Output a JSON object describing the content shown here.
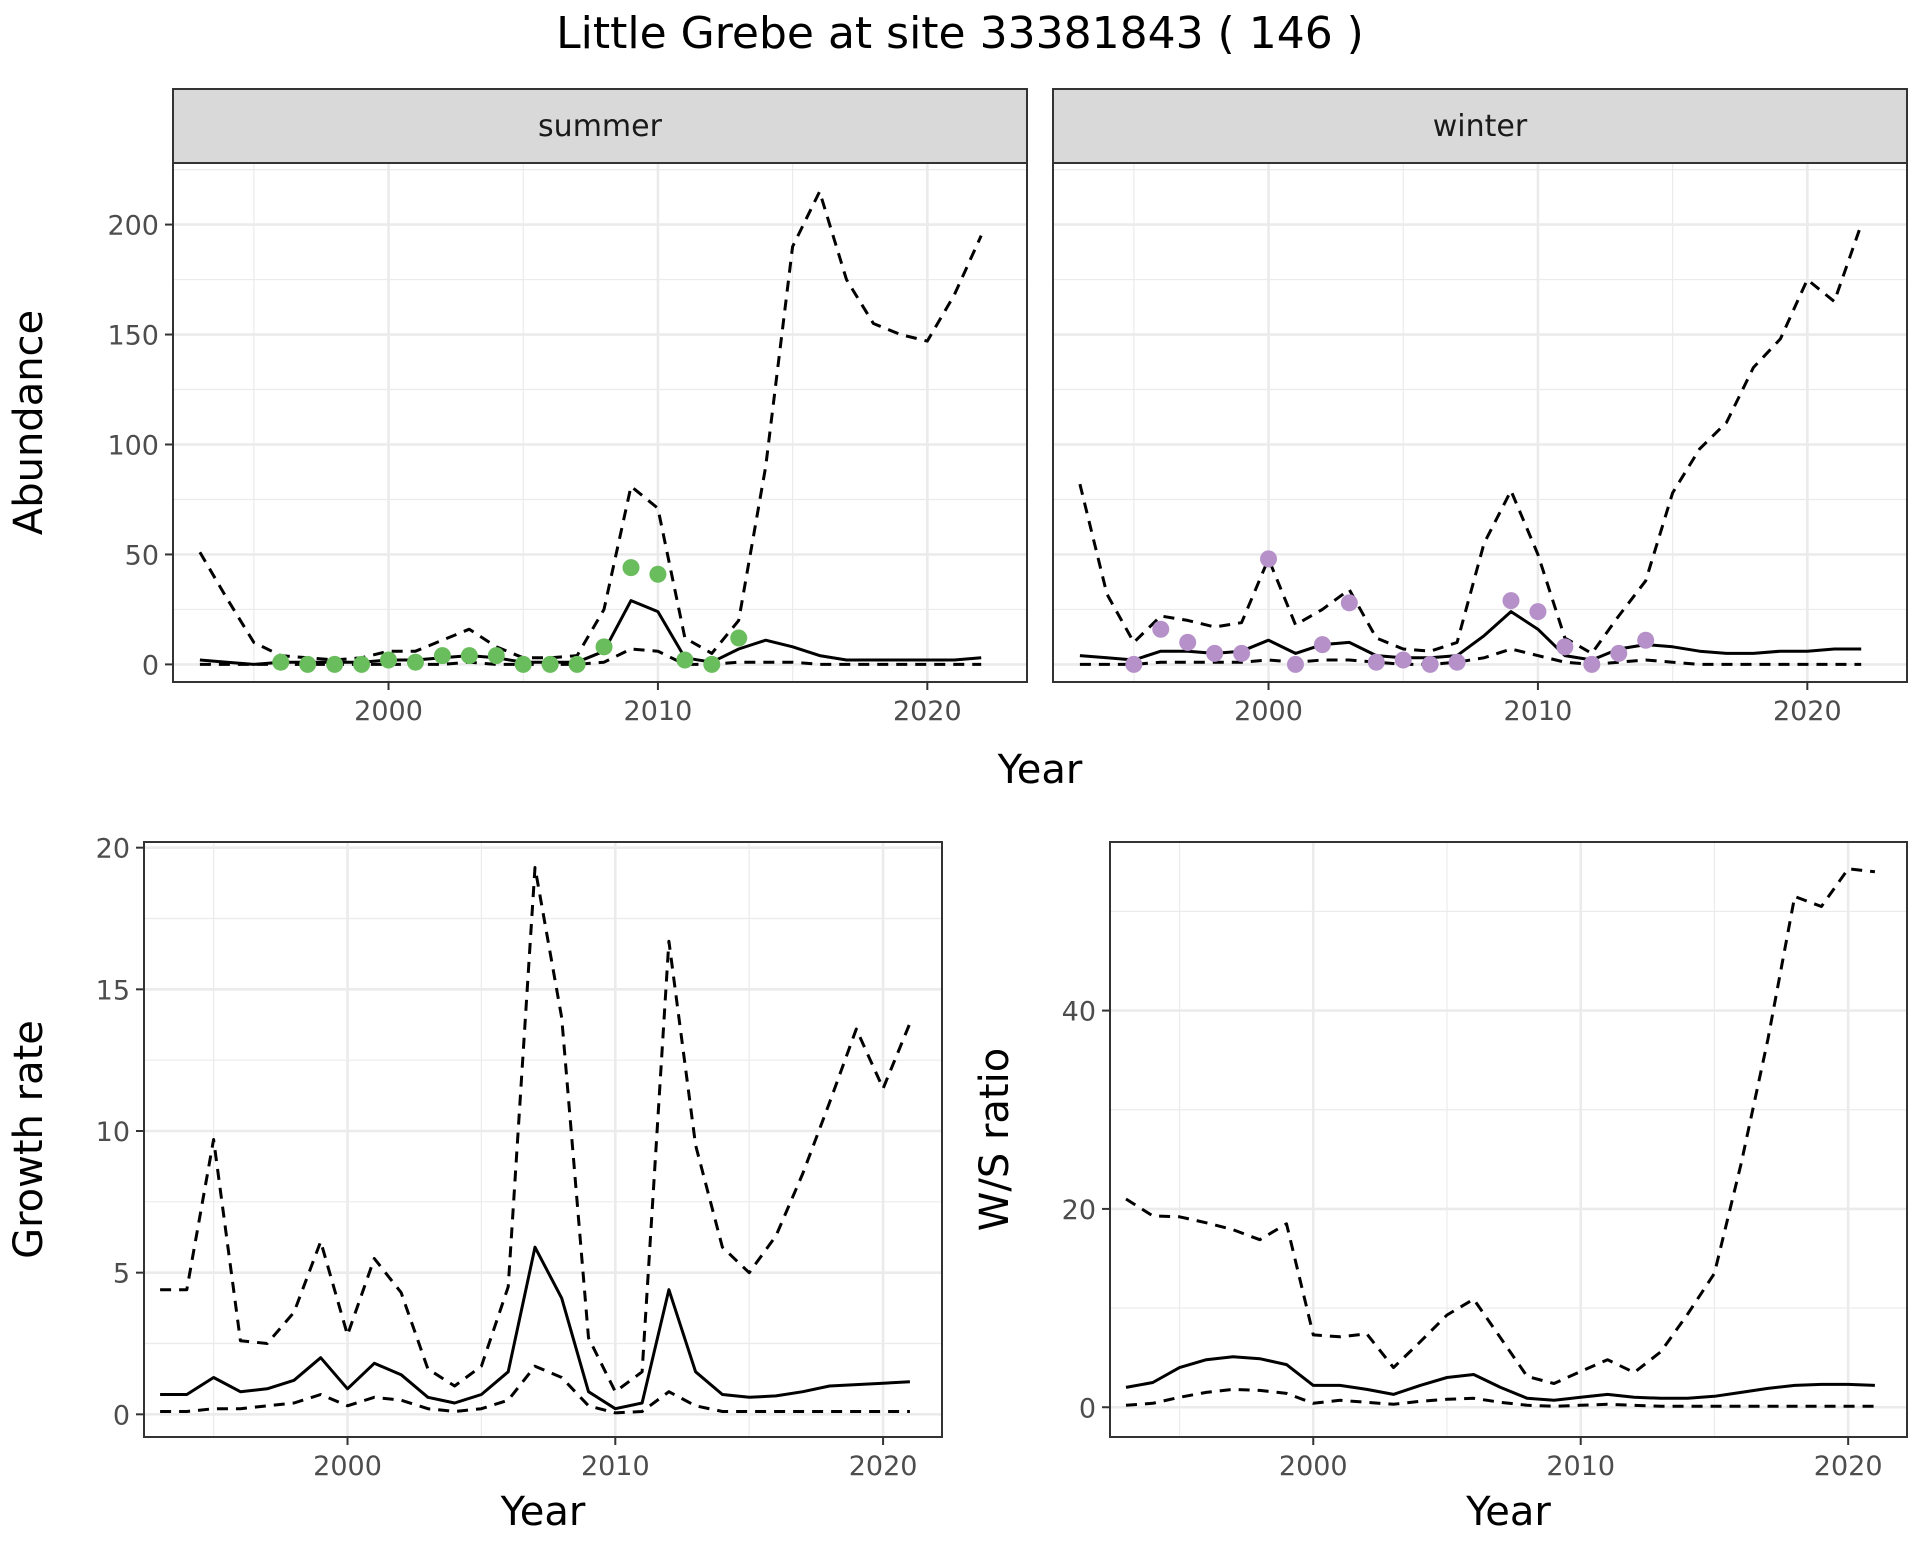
{
  "title": "Little Grebe at site 33381843 ( 146 )",
  "colors": {
    "summer_points": "#6ABD5C",
    "winter_points": "#B590C9",
    "lines": "#000000",
    "grid": "#ebebeb",
    "strip_bg": "#d9d9d9"
  },
  "chart_data": [
    {
      "type": "line",
      "facet": "summer",
      "xlabel": "Year",
      "ylabel": "Abundance",
      "xlim": [
        1992,
        2023.7
      ],
      "ylim": [
        -8,
        228
      ],
      "xticks": [
        2000,
        2010,
        2020
      ],
      "yticks": [
        0,
        50,
        100,
        150,
        200
      ],
      "x": [
        1993,
        1994,
        1995,
        1996,
        1997,
        1998,
        1999,
        2000,
        2001,
        2002,
        2003,
        2004,
        2005,
        2006,
        2007,
        2008,
        2009,
        2010,
        2011,
        2012,
        2013,
        2014,
        2015,
        2016,
        2017,
        2018,
        2019,
        2020,
        2021,
        2022
      ],
      "series": [
        {
          "role": "estimate",
          "values": [
            2,
            1,
            0,
            1,
            1,
            1,
            1,
            2,
            2,
            3,
            4,
            3,
            1,
            1,
            1,
            6,
            29,
            24,
            3,
            1,
            7,
            11,
            8,
            4,
            2,
            2,
            2,
            2,
            2,
            3
          ]
        },
        {
          "role": "upper",
          "values": [
            51,
            30,
            10,
            4,
            3,
            2,
            3,
            6,
            6,
            11,
            16,
            8,
            3,
            3,
            4,
            25,
            81,
            71,
            12,
            5,
            20,
            90,
            190,
            215,
            175,
            155,
            150,
            147,
            168,
            195
          ]
        },
        {
          "role": "lower",
          "values": [
            0,
            0,
            0,
            0,
            0,
            0,
            0,
            0,
            0,
            0,
            1,
            0,
            0,
            0,
            0,
            1,
            7,
            6,
            0,
            0,
            1,
            1,
            1,
            0,
            0,
            0,
            0,
            0,
            0,
            0
          ]
        }
      ],
      "points": {
        "x": [
          1996,
          1997,
          1998,
          1999,
          2000,
          2001,
          2002,
          2003,
          2004,
          2005,
          2006,
          2007,
          2008,
          2009,
          2010,
          2011,
          2012,
          2013
        ],
        "y": [
          1,
          0,
          0,
          0,
          2,
          1,
          4,
          4,
          4,
          0,
          0,
          0,
          8,
          44,
          41,
          2,
          0,
          12
        ]
      }
    },
    {
      "type": "line",
      "facet": "winter",
      "xlabel": "Year",
      "ylabel": "Abundance",
      "xlim": [
        1992,
        2023.7
      ],
      "ylim": [
        -8,
        228
      ],
      "xticks": [
        2000,
        2010,
        2020
      ],
      "yticks": [
        0,
        50,
        100,
        150,
        200
      ],
      "x": [
        1993,
        1994,
        1995,
        1996,
        1997,
        1998,
        1999,
        2000,
        2001,
        2002,
        2003,
        2004,
        2005,
        2006,
        2007,
        2008,
        2009,
        2010,
        2011,
        2012,
        2013,
        2014,
        2015,
        2016,
        2017,
        2018,
        2019,
        2020,
        2021,
        2022
      ],
      "series": [
        {
          "role": "estimate",
          "values": [
            4,
            3,
            2,
            6,
            6,
            5,
            6,
            11,
            5,
            9,
            10,
            4,
            3,
            3,
            4,
            13,
            24,
            16,
            4,
            2,
            7,
            9,
            8,
            6,
            5,
            5,
            6,
            6,
            7,
            7
          ]
        },
        {
          "role": "upper",
          "values": [
            82,
            32,
            10,
            22,
            20,
            17,
            19,
            48,
            18,
            25,
            34,
            12,
            7,
            6,
            10,
            55,
            79,
            50,
            12,
            5,
            22,
            38,
            78,
            98,
            110,
            135,
            148,
            175,
            165,
            200
          ]
        },
        {
          "role": "lower",
          "values": [
            0,
            0,
            0,
            1,
            1,
            1,
            1,
            2,
            1,
            2,
            2,
            1,
            0,
            0,
            1,
            3,
            7,
            4,
            1,
            0,
            1,
            2,
            1,
            0,
            0,
            0,
            0,
            0,
            0,
            0
          ]
        }
      ],
      "points": {
        "x": [
          1995,
          1996,
          1997,
          1998,
          1999,
          2000,
          2001,
          2002,
          2003,
          2004,
          2005,
          2006,
          2007,
          2009,
          2010,
          2011,
          2012,
          2013,
          2014
        ],
        "y": [
          0,
          16,
          10,
          5,
          5,
          48,
          0,
          9,
          28,
          1,
          2,
          0,
          1,
          29,
          24,
          8,
          0,
          5,
          11
        ]
      }
    },
    {
      "type": "line",
      "facet": "",
      "xlabel": "Year",
      "ylabel": "Growth rate",
      "xlim": [
        1992.4,
        2022.2
      ],
      "ylim": [
        -0.8,
        20.2
      ],
      "xticks": [
        2000,
        2010,
        2020
      ],
      "yticks": [
        0,
        5,
        10,
        15,
        20
      ],
      "x": [
        1993,
        1994,
        1995,
        1996,
        1997,
        1998,
        1999,
        2000,
        2001,
        2002,
        2003,
        2004,
        2005,
        2006,
        2007,
        2008,
        2009,
        2010,
        2011,
        2012,
        2013,
        2014,
        2015,
        2016,
        2017,
        2018,
        2019,
        2020,
        2021
      ],
      "series": [
        {
          "role": "estimate",
          "values": [
            0.7,
            0.7,
            1.3,
            0.8,
            0.9,
            1.2,
            2.0,
            0.9,
            1.8,
            1.4,
            0.6,
            0.4,
            0.7,
            1.5,
            5.9,
            4.1,
            0.8,
            0.2,
            0.4,
            4.4,
            1.5,
            0.7,
            0.6,
            0.65,
            0.8,
            1.0,
            1.05,
            1.1,
            1.15
          ]
        },
        {
          "role": "upper",
          "values": [
            4.4,
            4.4,
            9.7,
            2.6,
            2.5,
            3.6,
            6.1,
            2.8,
            5.5,
            4.3,
            1.6,
            1.0,
            1.7,
            4.5,
            19.3,
            14.0,
            2.7,
            0.8,
            1.5,
            16.7,
            9.5,
            5.9,
            5.0,
            6.3,
            8.5,
            11.0,
            13.6,
            11.5,
            13.8
          ]
        },
        {
          "role": "lower",
          "values": [
            0.1,
            0.1,
            0.2,
            0.2,
            0.3,
            0.4,
            0.7,
            0.3,
            0.6,
            0.5,
            0.2,
            0.1,
            0.2,
            0.5,
            1.7,
            1.3,
            0.3,
            0.05,
            0.1,
            0.8,
            0.3,
            0.1,
            0.1,
            0.1,
            0.1,
            0.1,
            0.1,
            0.1,
            0.1
          ]
        }
      ]
    },
    {
      "type": "line",
      "facet": "",
      "xlabel": "Year",
      "ylabel": "W/S ratio",
      "xlim": [
        1992.4,
        2022.2
      ],
      "ylim": [
        -3,
        57
      ],
      "xticks": [
        2000,
        2010,
        2020
      ],
      "yticks": [
        0,
        20,
        40
      ],
      "x": [
        1993,
        1994,
        1995,
        1996,
        1997,
        1998,
        1999,
        2000,
        2001,
        2002,
        2003,
        2004,
        2005,
        2006,
        2007,
        2008,
        2009,
        2010,
        2011,
        2012,
        2013,
        2014,
        2015,
        2016,
        2017,
        2018,
        2019,
        2020,
        2021
      ],
      "series": [
        {
          "role": "estimate",
          "values": [
            2.0,
            2.5,
            4.0,
            4.8,
            5.1,
            4.9,
            4.3,
            2.2,
            2.2,
            1.8,
            1.3,
            2.2,
            3.0,
            3.3,
            2.0,
            0.9,
            0.7,
            1.0,
            1.3,
            1.0,
            0.9,
            0.9,
            1.1,
            1.5,
            1.9,
            2.2,
            2.3,
            2.3,
            2.2
          ]
        },
        {
          "role": "upper",
          "values": [
            21,
            19.3,
            19.2,
            18.6,
            17.9,
            16.9,
            18.5,
            7.3,
            7.1,
            7.4,
            4.0,
            6.6,
            9.3,
            10.9,
            7.0,
            3.1,
            2.4,
            3.6,
            4.8,
            3.5,
            5.6,
            9.4,
            13.5,
            24.6,
            37.1,
            51.5,
            50.5,
            54.3,
            54
          ]
        },
        {
          "role": "lower",
          "values": [
            0.2,
            0.4,
            1.0,
            1.5,
            1.8,
            1.7,
            1.4,
            0.4,
            0.7,
            0.5,
            0.3,
            0.6,
            0.8,
            0.9,
            0.5,
            0.2,
            0.1,
            0.2,
            0.3,
            0.2,
            0.1,
            0.1,
            0.1,
            0.1,
            0.1,
            0.1,
            0.1,
            0.1,
            0.1
          ]
        }
      ]
    }
  ]
}
